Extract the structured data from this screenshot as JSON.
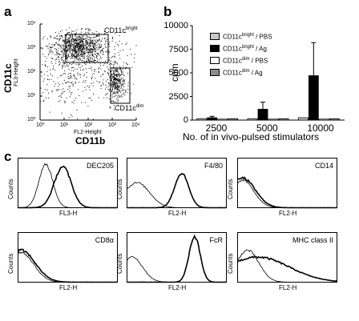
{
  "panel_a": {
    "letter": "a",
    "ylabel": "CD11c",
    "ylabel_small": "FL3-Height",
    "xlabel": "CD11b",
    "xlabel_small": "FL2-Height",
    "gate_bright_label": "CD11c",
    "gate_bright_sup": "bright",
    "gate_dim_label": "CD11c",
    "gate_dim_sup": "dim",
    "yticks": [
      "10⁰",
      "10¹",
      "10²",
      "10³",
      "10⁴"
    ],
    "xticks": [
      "10⁰",
      "10¹",
      "10²",
      "10³",
      "10⁴"
    ]
  },
  "panel_b": {
    "letter": "b",
    "ylabel": "cpm",
    "xlabel": "No. of in vivo-pulsed stimulators",
    "legend": [
      {
        "label": "CD11c",
        "sup": "bright",
        "rest": " / PBS",
        "color": "#c8c8c8"
      },
      {
        "label": "CD11c",
        "sup": "bright",
        "rest": " / Ag",
        "color": "#000000"
      },
      {
        "label": "CD11c",
        "sup": "dim",
        "rest": " / PBS",
        "color": "#ffffff"
      },
      {
        "label": "CD11c",
        "sup": "dim",
        "rest": " / Ag",
        "color": "#8c8c8c"
      }
    ]
  },
  "panel_c": {
    "letter": "c",
    "ylabel": "Counts",
    "histograms": [
      {
        "marker": "DEC205",
        "xlabel": "FL3-H"
      },
      {
        "marker": "F4/80",
        "xlabel": "FL2-H"
      },
      {
        "marker": "CD14",
        "xlabel": "FL2-H"
      },
      {
        "marker": "CD8α",
        "xlabel": "FL2-H"
      },
      {
        "marker": "FcR",
        "xlabel": "FL2-H"
      },
      {
        "marker": "MHC class II",
        "xlabel": "FL2-H"
      }
    ]
  },
  "chart_data": [
    {
      "type": "scatter",
      "panel": "a",
      "xlabel": "CD11b",
      "ylabel": "CD11c",
      "xscale": "log",
      "yscale": "log",
      "xlim": [
        1,
        10000
      ],
      "ylim": [
        1,
        10000
      ],
      "gates": [
        {
          "name": "CD11c bright",
          "x_range": [
            5,
            300
          ],
          "y_range": [
            100,
            3000
          ]
        },
        {
          "name": "CD11c dim",
          "x_range": [
            500,
            2500
          ],
          "y_range": [
            10,
            150
          ]
        }
      ]
    },
    {
      "type": "bar",
      "panel": "b",
      "categories": [
        "2500",
        "5000",
        "10000"
      ],
      "xlabel": "No. of in vivo-pulsed stimulators",
      "ylabel": "cpm",
      "ylim": [
        0,
        10000
      ],
      "yticks": [
        0,
        2500,
        5000,
        7500,
        10000
      ],
      "series": [
        {
          "name": "CD11c bright / PBS",
          "values": [
            150,
            150,
            250
          ],
          "errors": [
            0,
            0,
            0
          ]
        },
        {
          "name": "CD11c bright / Ag",
          "values": [
            250,
            1150,
            4700
          ],
          "errors": [
            150,
            750,
            3500
          ]
        },
        {
          "name": "CD11c dim / PBS",
          "values": [
            100,
            100,
            100
          ],
          "errors": [
            0,
            0,
            0
          ]
        },
        {
          "name": "CD11c dim / Ag",
          "values": [
            150,
            150,
            150
          ],
          "errors": [
            0,
            0,
            0
          ]
        }
      ]
    }
  ]
}
